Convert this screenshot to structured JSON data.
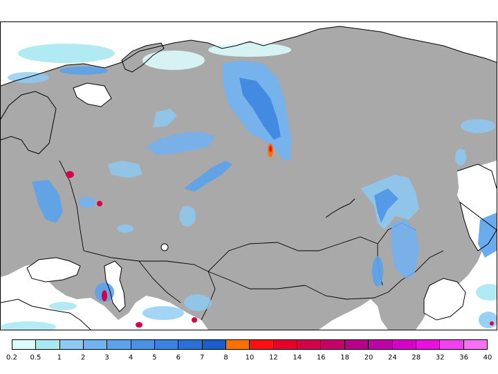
{
  "map": {
    "land_color": "#a9a9a9",
    "water_color": "#ffffff",
    "border_color": "#000000"
  },
  "legend": {
    "breaks": [
      "0.2",
      "0.5",
      "1",
      "2",
      "3",
      "4",
      "5",
      "6",
      "7",
      "8",
      "10",
      "12",
      "14",
      "16",
      "18",
      "20",
      "24",
      "28",
      "32",
      "36",
      "40"
    ],
    "colors": [
      "#dcfafa",
      "#a8e8f2",
      "#8ccaf4",
      "#70b2f2",
      "#5aa2ec",
      "#4a92e6",
      "#3a82e0",
      "#2a70d8",
      "#1a5ecc",
      "#ff7000",
      "#ff1010",
      "#e8002a",
      "#d6004a",
      "#c8006a",
      "#b8008a",
      "#c000a8",
      "#d800c8",
      "#ea10e0",
      "#f040f0",
      "#f870f4"
    ]
  }
}
